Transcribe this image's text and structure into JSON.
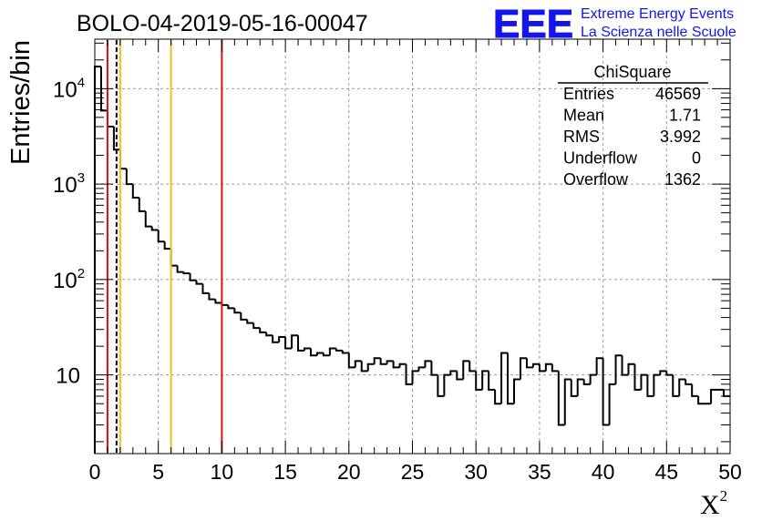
{
  "chart_data": {
    "type": "histogram",
    "title": "BOLO-04-2019-05-16-00047",
    "logo": {
      "text": "EEE",
      "line1": "Extreme Energy Events",
      "line2": "La Scienza nelle Scuole",
      "color": "#1414ee"
    },
    "xlabel": "X",
    "xlabel_sup": "2",
    "ylabel": "Entries/bin",
    "xlim": [
      0,
      50
    ],
    "ylim": [
      1.5,
      33000
    ],
    "yscale": "log",
    "grid": true,
    "x_ticks": [
      0,
      5,
      10,
      15,
      20,
      25,
      30,
      35,
      40,
      45,
      50
    ],
    "x_tick_labels": [
      "0",
      "5",
      "10",
      "15",
      "20",
      "25",
      "30",
      "35",
      "40",
      "45",
      "50"
    ],
    "y_ticks": [
      {
        "value": 10,
        "base": "10",
        "exp": ""
      },
      {
        "value": 100,
        "base": "10",
        "exp": "2"
      },
      {
        "value": 1000,
        "base": "10",
        "exp": "3"
      },
      {
        "value": 10000,
        "base": "10",
        "exp": "4"
      }
    ],
    "bin_width": 0.5,
    "bin_counts": [
      17000,
      5900,
      4000,
      2300,
      1450,
      1000,
      720,
      520,
      360,
      330,
      250,
      210,
      140,
      120,
      116,
      98,
      90,
      72,
      62,
      57,
      54,
      50,
      45,
      38,
      35,
      31,
      28,
      26,
      22,
      25,
      19,
      26,
      18,
      19,
      16,
      17,
      16,
      19,
      18,
      17,
      12,
      14,
      11,
      13,
      15,
      13,
      14,
      12,
      13,
      8,
      11,
      12,
      14,
      10,
      6,
      10,
      11,
      9,
      14,
      11,
      7,
      11,
      7,
      5,
      17,
      5,
      9,
      15,
      12,
      13,
      11,
      13,
      11,
      3,
      9,
      6,
      9,
      8,
      10,
      15,
      3,
      8,
      16,
      10,
      13,
      7,
      10,
      6,
      10,
      11,
      10,
      6,
      9,
      8,
      6,
      5,
      5,
      7,
      7,
      6
    ],
    "lines": [
      {
        "x": 1.0,
        "color": "#dd1111",
        "style": "solid"
      },
      {
        "x": 1.71,
        "color": "#000000",
        "style": "dashed"
      },
      {
        "x": 2.0,
        "color": "#f0c020",
        "style": "solid"
      },
      {
        "x": 6.0,
        "color": "#f0c020",
        "style": "solid"
      },
      {
        "x": 10.0,
        "color": "#dd1111",
        "style": "solid"
      }
    ],
    "stats": {
      "name": "ChiSquare",
      "rows": [
        {
          "label": "Entries",
          "value": "46569"
        },
        {
          "label": "Mean",
          "value": "1.71"
        },
        {
          "label": "RMS",
          "value": "3.992"
        },
        {
          "label": "Underflow",
          "value": "0"
        },
        {
          "label": "Overflow",
          "value": "1362"
        }
      ]
    }
  }
}
